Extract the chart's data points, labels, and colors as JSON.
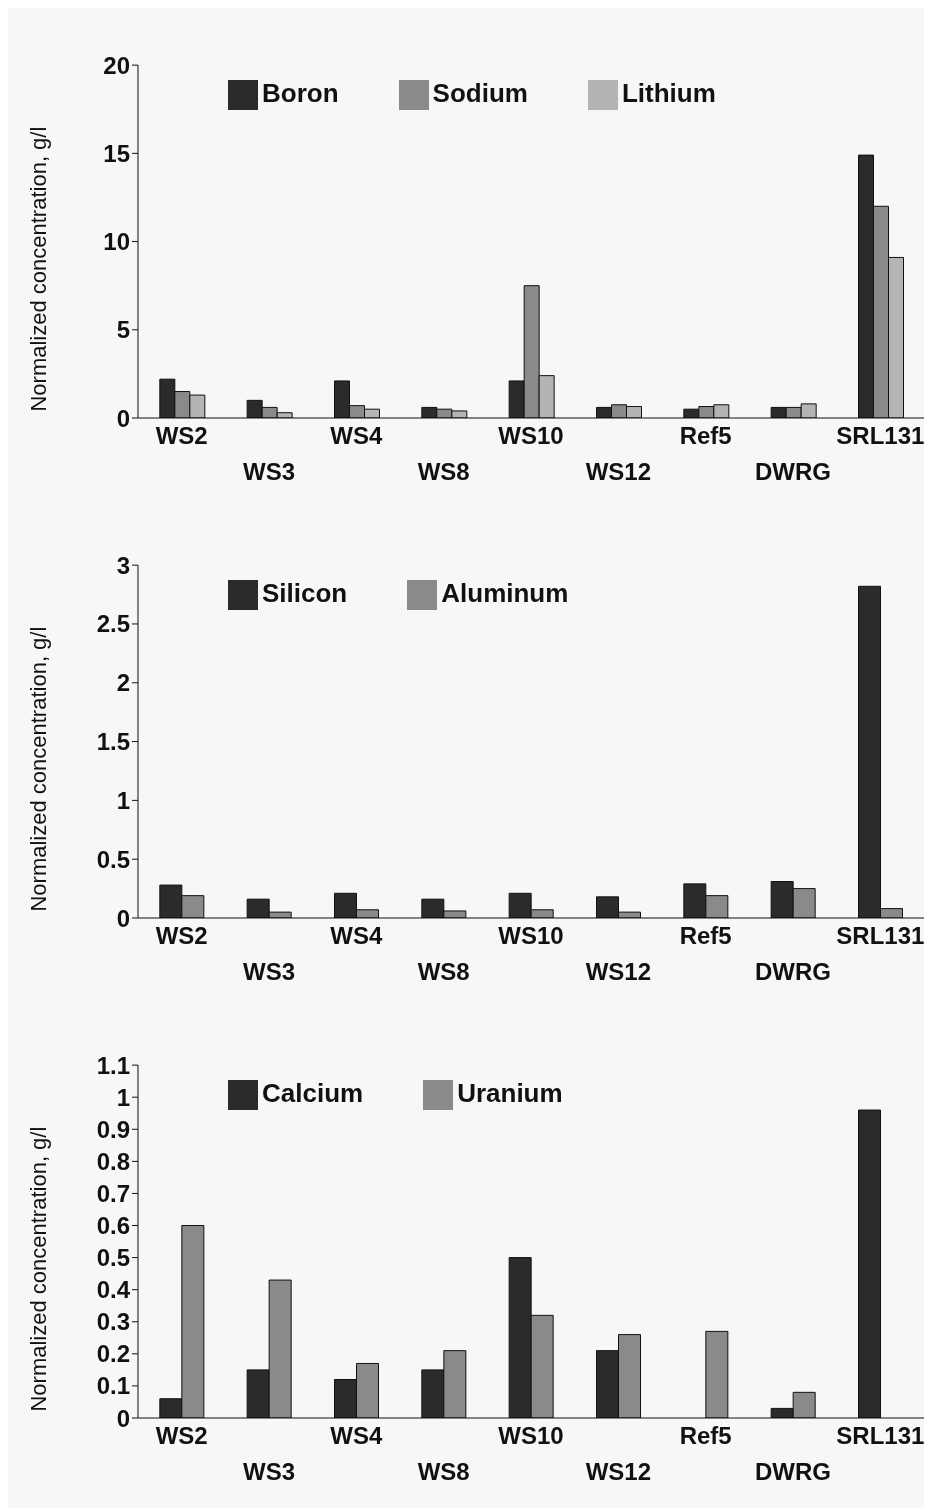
{
  "chart_data": [
    {
      "type": "bar",
      "ylabel": "Normalized concentration, g/l",
      "categories": [
        "WS2",
        "WS3",
        "WS4",
        "WS8",
        "WS10",
        "WS12",
        "Ref5",
        "DWRG",
        "SRL131"
      ],
      "series": [
        {
          "name": "Boron",
          "color": "#2b2b2b",
          "values": [
            2.2,
            1.0,
            2.1,
            0.6,
            2.1,
            0.6,
            0.5,
            0.6,
            14.9
          ]
        },
        {
          "name": "Sodium",
          "color": "#8a8a8a",
          "values": [
            1.5,
            0.6,
            0.7,
            0.5,
            7.5,
            0.75,
            0.65,
            0.6,
            12.0
          ]
        },
        {
          "name": "Lithium",
          "color": "#b4b4b4",
          "values": [
            1.3,
            0.3,
            0.5,
            0.4,
            2.4,
            0.65,
            0.75,
            0.8,
            9.1
          ]
        }
      ],
      "ylim": [
        0,
        20
      ],
      "yticks": [
        0,
        5,
        10,
        15,
        20
      ],
      "legend": "top left"
    },
    {
      "type": "bar",
      "ylabel": "Normalized concentration, g/l",
      "categories": [
        "WS2",
        "WS3",
        "WS4",
        "WS8",
        "WS10",
        "WS12",
        "Ref5",
        "DWRG",
        "SRL131"
      ],
      "series": [
        {
          "name": "Silicon",
          "color": "#2b2b2b",
          "values": [
            0.28,
            0.16,
            0.21,
            0.16,
            0.21,
            0.18,
            0.29,
            0.31,
            2.82
          ]
        },
        {
          "name": "Aluminum",
          "color": "#8a8a8a",
          "values": [
            0.19,
            0.05,
            0.07,
            0.06,
            0.07,
            0.05,
            0.19,
            0.25,
            0.08
          ]
        }
      ],
      "ylim": [
        0,
        3
      ],
      "yticks": [
        0,
        0.5,
        1,
        1.5,
        2,
        2.5,
        3
      ],
      "legend": "top left"
    },
    {
      "type": "bar",
      "ylabel": "Normalized concentration, g/l",
      "categories": [
        "WS2",
        "WS3",
        "WS4",
        "WS8",
        "WS10",
        "WS12",
        "Ref5",
        "DWRG",
        "SRL131"
      ],
      "series": [
        {
          "name": "Calcium",
          "color": "#2b2b2b",
          "values": [
            0.06,
            0.15,
            0.12,
            0.15,
            0.5,
            0.21,
            null,
            0.03,
            0.96
          ]
        },
        {
          "name": "Uranium",
          "color": "#8a8a8a",
          "values": [
            0.6,
            0.43,
            0.17,
            0.21,
            0.32,
            0.26,
            0.27,
            0.08,
            null
          ]
        }
      ],
      "ylim": [
        0,
        1.1
      ],
      "yticks": [
        0,
        0.1,
        0.2,
        0.3,
        0.4,
        0.5,
        0.6,
        0.7,
        0.8,
        0.9,
        1,
        1.1
      ],
      "legend": "top left"
    }
  ]
}
